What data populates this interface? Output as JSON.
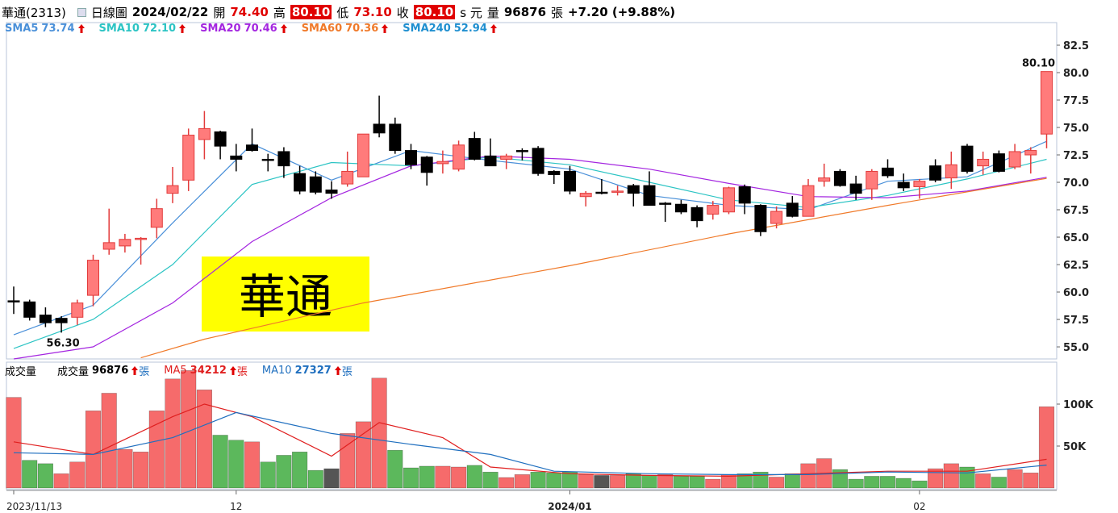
{
  "header": {
    "name": "華通(2313)",
    "period": "日線圖",
    "date": "2024/02/22",
    "open_label": "開",
    "open": "74.40",
    "high_label": "高",
    "high": "80.10",
    "low_label": "低",
    "low": "73.10",
    "close_label": "收",
    "close": "80.10",
    "unit": "s 元",
    "volume_label": "量",
    "volume": "96876",
    "volume_unit": "張",
    "change": "+7.20 (+9.88%)"
  },
  "chart_data": [
    {
      "type": "candlestick",
      "overlay_text": "華通",
      "categories": [
        "2023/11/13",
        null,
        null,
        null,
        null,
        null,
        null,
        null,
        null,
        null,
        null,
        null,
        null,
        null,
        "12",
        null,
        null,
        null,
        null,
        null,
        null,
        null,
        null,
        null,
        null,
        null,
        null,
        null,
        null,
        null,
        null,
        null,
        null,
        null,
        null,
        "2024/01",
        null,
        null,
        null,
        null,
        null,
        null,
        null,
        null,
        null,
        null,
        null,
        null,
        null,
        null,
        null,
        null,
        null,
        null,
        null,
        null,
        null,
        "02",
        null,
        null,
        null,
        null,
        null,
        null,
        null,
        null
      ],
      "open": [
        59.2,
        59.1,
        57.9,
        57.6,
        57.7,
        59.7,
        63.9,
        64.2,
        64.8,
        65.9,
        69.0,
        70.2,
        73.9,
        74.6,
        72.4,
        73.4,
        72.1,
        72.8,
        70.8,
        70.5,
        69.3,
        69.85,
        70.5,
        75.3,
        75.3,
        72.9,
        72.3,
        71.7,
        71.2,
        74.0,
        72.4,
        72.1,
        72.9,
        73.1,
        71.0,
        71.0,
        68.7,
        69.1,
        69.1,
        69.7,
        69.7,
        68.1,
        68.0,
        67.7,
        67.1,
        67.3,
        69.6,
        67.9,
        66.25,
        68.1,
        66.9,
        70.1,
        71.0,
        69.85,
        69.4,
        71.3,
        70.0,
        69.6,
        71.5,
        70.4,
        73.3,
        71.5,
        72.6,
        71.4,
        72.5,
        74.4
      ],
      "high": [
        60.5,
        59.3,
        58.6,
        57.8,
        59.3,
        63.4,
        67.6,
        65.3,
        65.0,
        68.5,
        71.4,
        74.9,
        76.5,
        74.7,
        73.5,
        74.9,
        72.6,
        73.2,
        71.5,
        71.0,
        70.1,
        72.8,
        74.4,
        77.9,
        75.9,
        73.5,
        72.4,
        72.9,
        73.8,
        74.6,
        74.0,
        72.6,
        73.1,
        73.3,
        71.1,
        71.5,
        69.2,
        70.3,
        69.7,
        69.85,
        71.0,
        68.2,
        68.4,
        67.9,
        68.3,
        69.6,
        69.8,
        68.0,
        67.8,
        68.75,
        70.3,
        71.7,
        71.2,
        70.6,
        71.2,
        72.1,
        70.8,
        70.3,
        72.1,
        72.8,
        73.5,
        72.8,
        72.9,
        73.5,
        73.2,
        80.1
      ],
      "low": [
        58.0,
        57.4,
        56.8,
        56.3,
        57.0,
        58.7,
        63.4,
        63.6,
        62.5,
        64.9,
        68.1,
        69.2,
        72.1,
        72.1,
        71.0,
        72.8,
        71.0,
        70.4,
        68.9,
        68.9,
        68.5,
        69.6,
        70.5,
        74.1,
        72.6,
        71.2,
        69.7,
        70.8,
        71.0,
        72.0,
        71.5,
        71.2,
        72.0,
        70.6,
        69.85,
        68.9,
        67.8,
        68.9,
        68.8,
        67.8,
        67.9,
        66.4,
        67.1,
        65.9,
        66.6,
        67.1,
        67.1,
        65.1,
        65.8,
        66.8,
        66.9,
        69.6,
        69.6,
        68.4,
        68.4,
        70.4,
        69.2,
        68.5,
        70.0,
        69.4,
        70.8,
        70.7,
        70.9,
        71.2,
        70.8,
        73.1
      ],
      "close": [
        59.2,
        57.7,
        57.2,
        57.2,
        59.0,
        62.9,
        64.5,
        64.8,
        64.9,
        67.6,
        69.7,
        74.3,
        74.9,
        73.3,
        72.1,
        72.9,
        72.0,
        71.5,
        69.2,
        69.1,
        69.0,
        71.0,
        74.4,
        74.5,
        72.9,
        71.6,
        70.9,
        71.9,
        73.4,
        72.1,
        71.5,
        72.4,
        72.9,
        70.8,
        70.7,
        69.2,
        69.0,
        69.1,
        69.2,
        69.0,
        67.9,
        68.1,
        67.3,
        66.5,
        67.9,
        69.5,
        68.1,
        65.5,
        67.35,
        66.9,
        69.7,
        70.4,
        69.7,
        69.0,
        71.0,
        70.6,
        69.5,
        70.1,
        70.2,
        71.6,
        71.0,
        72.1,
        71.0,
        72.8,
        72.9,
        80.1
      ],
      "up_color": "#ff7b7b",
      "up_edge_color": "#e23b3b",
      "down_color": "#000000",
      "series": [
        {
          "name": "SMA5",
          "legend_label": "73.74",
          "color": "#4a90d9",
          "x": [
            0,
            5,
            10,
            15,
            20,
            25,
            30,
            35,
            40,
            45,
            50,
            55,
            60,
            65
          ],
          "values": [
            56.1,
            58.8,
            66.3,
            73.5,
            70.2,
            72.9,
            72.0,
            71.2,
            68.8,
            67.9,
            67.5,
            70.1,
            70.5,
            73.74
          ]
        },
        {
          "name": "SMA10",
          "legend_label": "72.10",
          "color": "#2cc4c4",
          "x": [
            0,
            5,
            10,
            15,
            20,
            25,
            30,
            35,
            40,
            45,
            50,
            55,
            60,
            65
          ],
          "values": [
            54.85,
            57.5,
            62.5,
            69.8,
            71.8,
            71.5,
            72.3,
            71.6,
            70.0,
            68.4,
            67.7,
            68.8,
            70.3,
            72.1
          ]
        },
        {
          "name": "SMA20",
          "legend_label": "70.46",
          "color": "#a426e0",
          "x": [
            0,
            5,
            10,
            15,
            20,
            25,
            30,
            35,
            40,
            45,
            50,
            55,
            60,
            65
          ],
          "values": [
            53.9,
            55.0,
            59.0,
            64.6,
            68.6,
            71.5,
            72.4,
            72.1,
            71.2,
            69.9,
            68.7,
            68.6,
            69.2,
            70.46
          ]
        },
        {
          "name": "SMA60",
          "legend_label": "70.36",
          "color": "#f07a2a",
          "x": [
            8,
            12,
            22,
            35,
            45,
            55,
            65
          ],
          "values": [
            54.0,
            55.7,
            59.0,
            62.4,
            65.3,
            67.9,
            70.36
          ]
        },
        {
          "name": "SMA240",
          "legend_label": "52.94",
          "color": "#1f8fd0"
        }
      ],
      "annotations": [
        {
          "text": "56.30",
          "x": 3,
          "y": 56.3,
          "side": "below"
        },
        {
          "text": "80.10",
          "x": 65,
          "y": 80.1,
          "side": "above"
        }
      ],
      "ylim": [
        53.9,
        84.56
      ],
      "yticks": [
        {
          "value": 55,
          "label": "55.0"
        },
        57.5,
        {
          "value": 60,
          "label": "60.0"
        },
        62.5,
        {
          "value": 65,
          "label": "65.0"
        },
        67.5,
        {
          "value": 70,
          "label": "70.0"
        },
        72.5,
        {
          "value": 75,
          "label": "75.0"
        },
        77.5,
        {
          "value": 80,
          "label": "80.0"
        },
        82.5
      ]
    },
    {
      "type": "bar",
      "title": "成交量",
      "unit": "張",
      "values": [
        108000,
        33000,
        29000,
        17000,
        31000,
        92000,
        113000,
        46000,
        43000,
        92000,
        130000,
        140000,
        117000,
        63000,
        57000,
        55000,
        31000,
        39000,
        43000,
        21000,
        23000,
        65000,
        79000,
        131000,
        45000,
        24000,
        26000,
        26000,
        25000,
        27000,
        19000,
        12500,
        16000,
        19000,
        18000,
        19000,
        16000,
        15000,
        15000,
        17000,
        15000,
        16000,
        14000,
        14000,
        10500,
        16000,
        17000,
        19000,
        13000,
        17000,
        29000,
        35000,
        22000,
        10500,
        14000,
        14000,
        11500,
        8500,
        23000,
        29000,
        25000,
        17000,
        13000,
        22000,
        18000,
        96876
      ],
      "colors": [
        "#f66b6b",
        "#5cb85c",
        "#5cb85c",
        "#f66b6b",
        "#f66b6b",
        "#f66b6b",
        "#f66b6b",
        "#f66b6b",
        "#f66b6b",
        "#f66b6b",
        "#f66b6b",
        "#f66b6b",
        "#f66b6b",
        "#5cb85c",
        "#5cb85c",
        "#f66b6b",
        "#5cb85c",
        "#5cb85c",
        "#5cb85c",
        "#5cb85c",
        "#555555",
        "#f66b6b",
        "#f66b6b",
        "#f66b6b",
        "#5cb85c",
        "#5cb85c",
        "#5cb85c",
        "#f66b6b",
        "#f66b6b",
        "#5cb85c",
        "#5cb85c",
        "#f66b6b",
        "#f66b6b",
        "#5cb85c",
        "#5cb85c",
        "#5cb85c",
        "#f66b6b",
        "#555555",
        "#f66b6b",
        "#5cb85c",
        "#5cb85c",
        "#f66b6b",
        "#5cb85c",
        "#5cb85c",
        "#f66b6b",
        "#f66b6b",
        "#5cb85c",
        "#5cb85c",
        "#f66b6b",
        "#5cb85c",
        "#f66b6b",
        "#f66b6b",
        "#5cb85c",
        "#5cb85c",
        "#5cb85c",
        "#5cb85c",
        "#5cb85c",
        "#5cb85c",
        "#f66b6b",
        "#f66b6b",
        "#5cb85c",
        "#f66b6b",
        "#5cb85c",
        "#f66b6b",
        "#f66b6b",
        "#f66b6b"
      ],
      "legend": [
        {
          "name": "成交量",
          "legend_label": "96876",
          "color": "#000000"
        }
      ],
      "series": [
        {
          "name": "MA5",
          "legend_label": "34212",
          "color": "#e02020",
          "x": [
            0,
            5,
            10,
            12,
            15,
            20,
            23,
            27,
            30,
            35,
            40,
            45,
            50,
            55,
            60,
            65
          ],
          "values": [
            55000,
            40000,
            85000,
            100000,
            85000,
            38000,
            78000,
            60000,
            25000,
            17000,
            15000,
            14000,
            17000,
            20000,
            20000,
            34212
          ]
        },
        {
          "name": "MA10",
          "legend_label": "27327",
          "color": "#1f6fbf",
          "x": [
            0,
            5,
            10,
            14,
            20,
            25,
            30,
            34,
            40,
            45,
            50,
            55,
            60,
            65
          ],
          "values": [
            42000,
            40000,
            60000,
            90000,
            65000,
            52000,
            40000,
            20000,
            17000,
            16000,
            16000,
            19000,
            18000,
            27327
          ]
        }
      ],
      "ylim": [
        0,
        150000
      ],
      "yticks": [
        {
          "value": 50000,
          "label": "50K"
        },
        {
          "value": 100000,
          "label": "100K"
        }
      ]
    }
  ]
}
